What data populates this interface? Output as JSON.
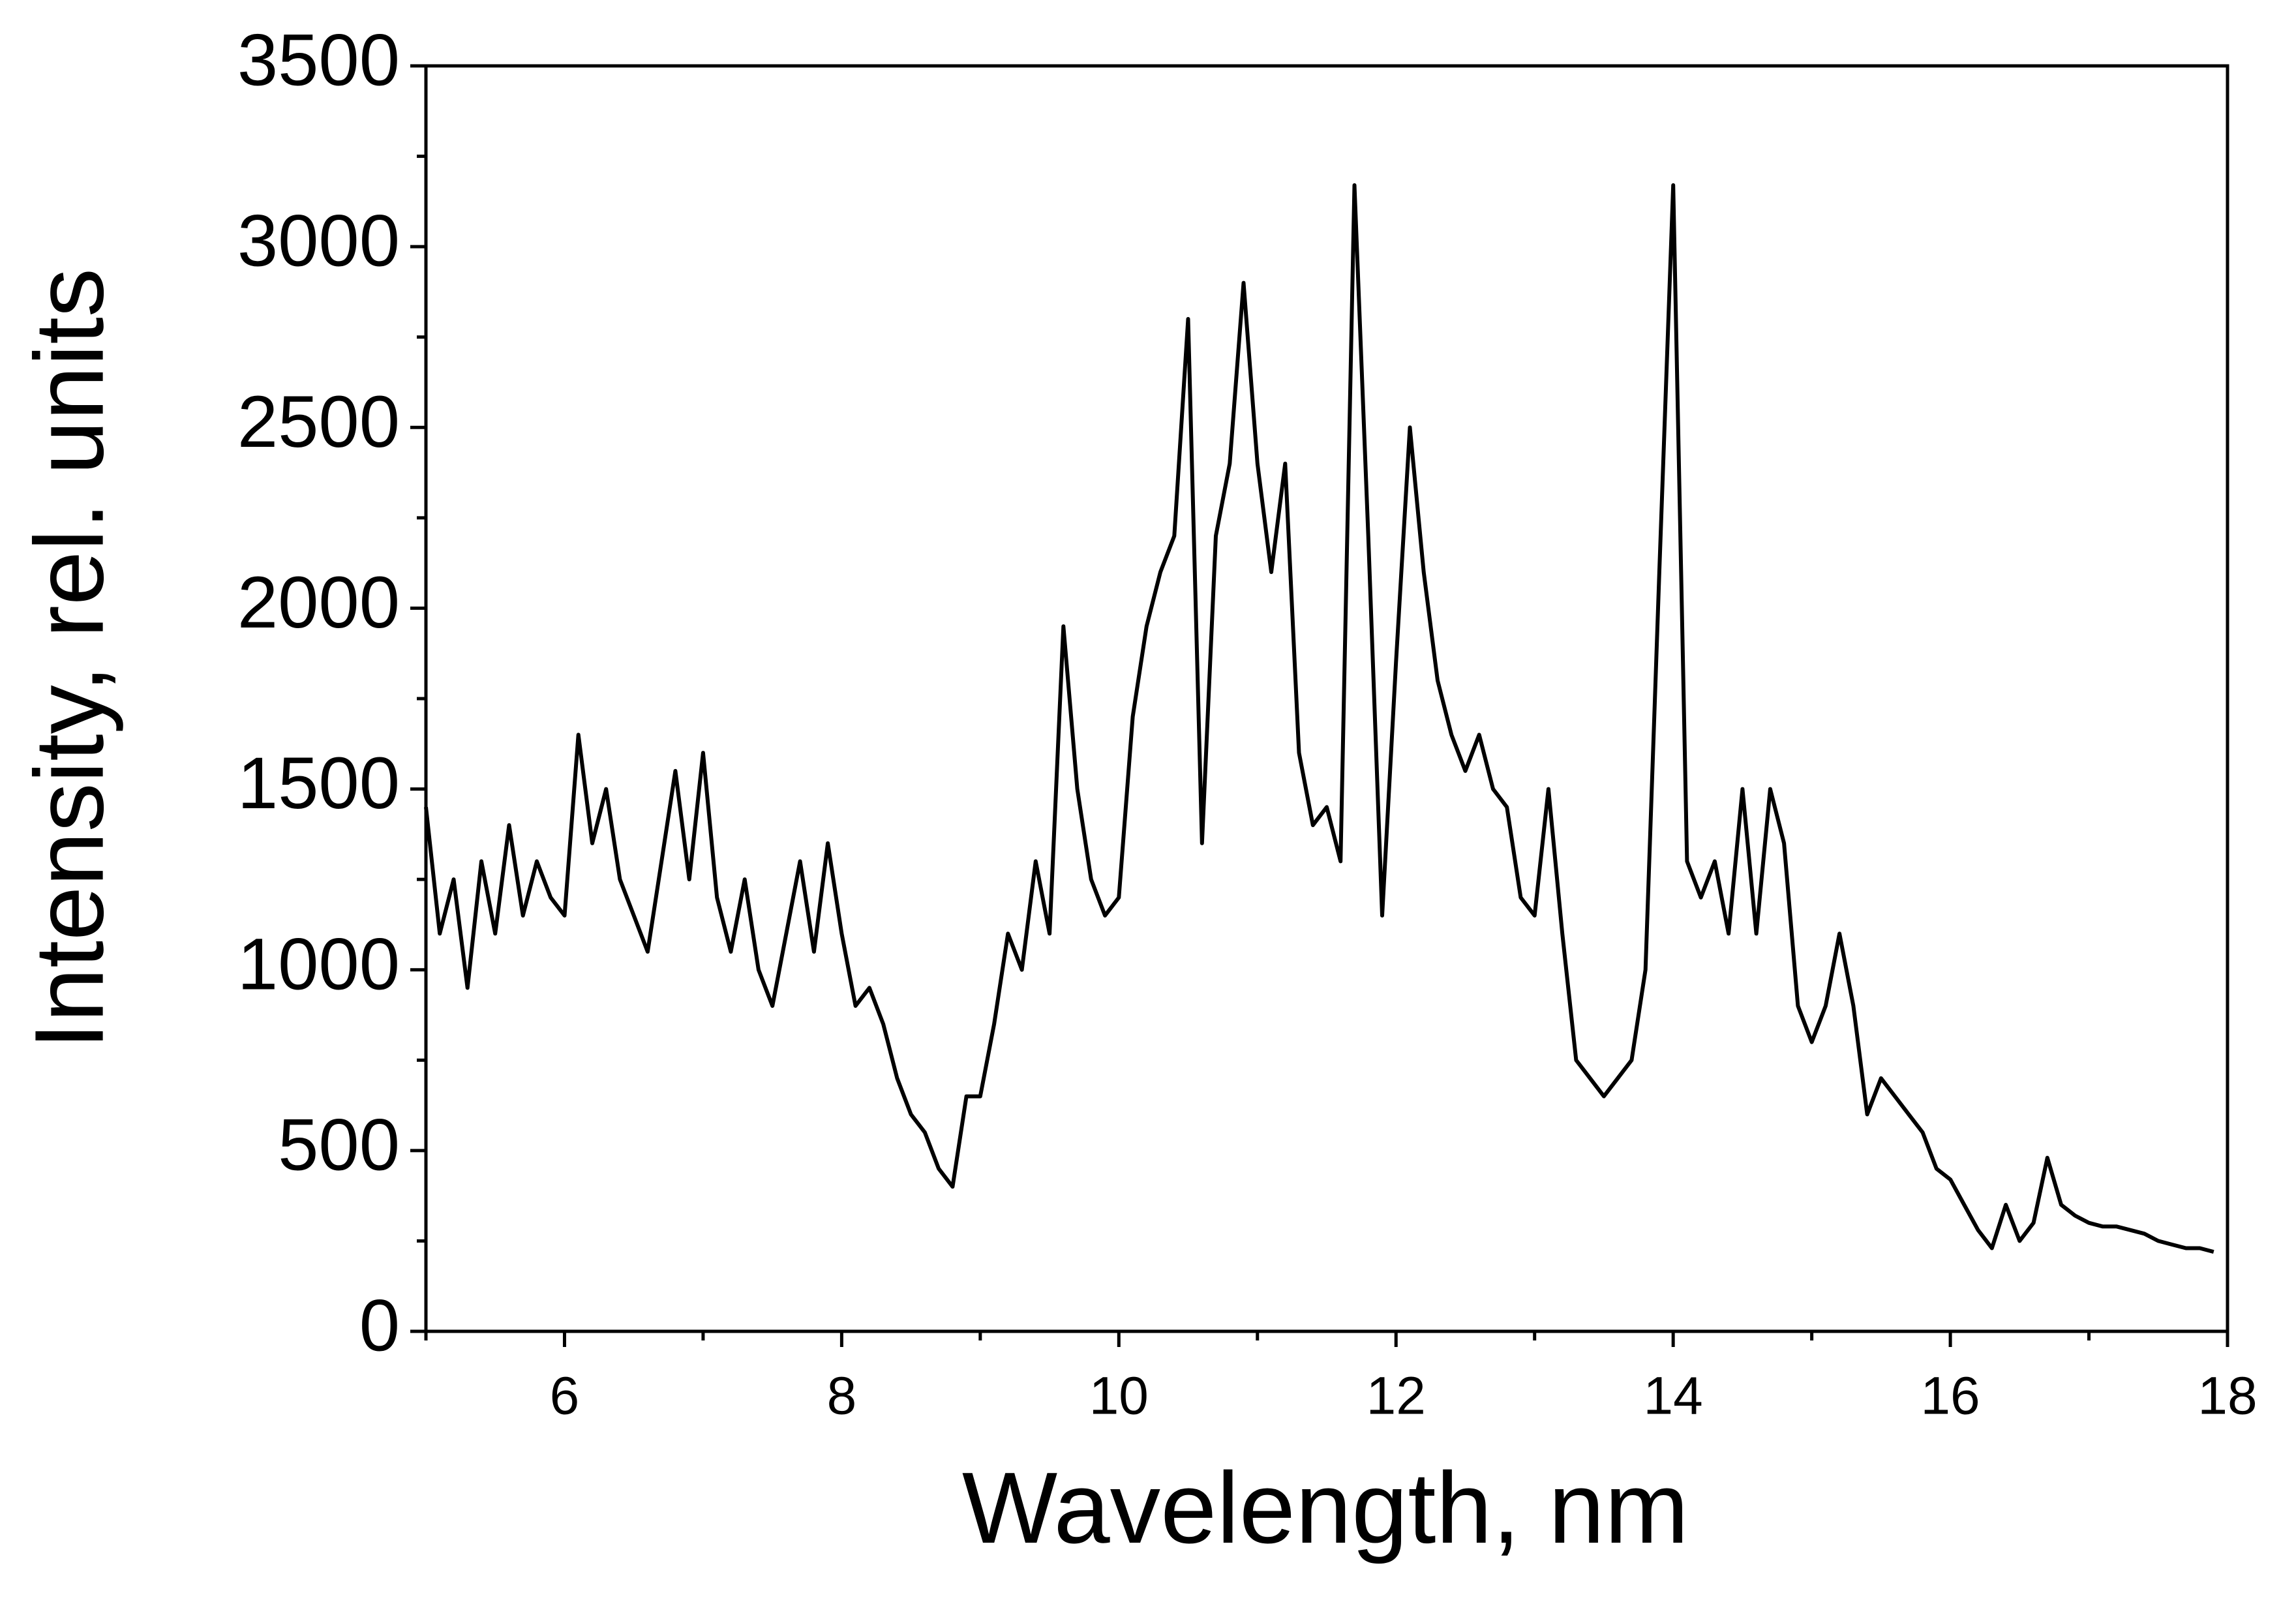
{
  "chart_data": {
    "type": "line",
    "xlabel": "Wavelength, nm",
    "ylabel": "Intensity, rel. units",
    "color": "#000000",
    "x": [
      5.0,
      5.1,
      5.2,
      5.3,
      5.4,
      5.5,
      5.6,
      5.7,
      5.8,
      5.9,
      6.0,
      6.1,
      6.2,
      6.3,
      6.4,
      6.5,
      6.6,
      6.7,
      6.8,
      6.9,
      7.0,
      7.1,
      7.2,
      7.3,
      7.4,
      7.5,
      7.6,
      7.7,
      7.8,
      7.9,
      8.0,
      8.1,
      8.2,
      8.3,
      8.4,
      8.5,
      8.6,
      8.7,
      8.8,
      8.9,
      9.0,
      9.1,
      9.2,
      9.3,
      9.4,
      9.5,
      9.6,
      9.7,
      9.8,
      9.9,
      10.0,
      10.1,
      10.2,
      10.3,
      10.4,
      10.5,
      10.6,
      10.7,
      10.8,
      10.9,
      11.0,
      11.1,
      11.2,
      11.3,
      11.4,
      11.5,
      11.6,
      11.7,
      11.8,
      11.9,
      12.0,
      12.1,
      12.2,
      12.3,
      12.4,
      12.5,
      12.6,
      12.7,
      12.8,
      12.9,
      13.0,
      13.1,
      13.2,
      13.3,
      13.4,
      13.5,
      13.6,
      13.7,
      13.8,
      13.9,
      14.0,
      14.1,
      14.2,
      14.3,
      14.4,
      14.5,
      14.6,
      14.7,
      14.8,
      14.9,
      15.0,
      15.1,
      15.2,
      15.3,
      15.4,
      15.5,
      15.6,
      15.7,
      15.8,
      15.9,
      16.0,
      16.1,
      16.2,
      16.3,
      16.4,
      16.5,
      16.6,
      16.7,
      16.8,
      16.9,
      17.0,
      17.1,
      17.2,
      17.3,
      17.4,
      17.5,
      17.6,
      17.7,
      17.8,
      17.9
    ],
    "values": [
      1450,
      1100,
      1250,
      950,
      1300,
      1100,
      1400,
      1150,
      1300,
      1200,
      1150,
      1650,
      1350,
      1500,
      1250,
      1150,
      1050,
      1300,
      1550,
      1250,
      1600,
      1200,
      1050,
      1250,
      1000,
      900,
      1100,
      1300,
      1050,
      1350,
      1100,
      900,
      950,
      850,
      700,
      600,
      550,
      450,
      400,
      650,
      650,
      850,
      1100,
      1000,
      1300,
      1100,
      1950,
      1500,
      1250,
      1150,
      1200,
      1700,
      1950,
      2100,
      2200,
      2800,
      1350,
      2200,
      2400,
      2900,
      2400,
      2100,
      2400,
      1600,
      1400,
      1450,
      1300,
      3170,
      2200,
      1150,
      1850,
      2500,
      2100,
      1800,
      1650,
      1550,
      1650,
      1500,
      1450,
      1200,
      1150,
      1500,
      1100,
      750,
      700,
      650,
      700,
      750,
      1000,
      2100,
      3170,
      1300,
      1200,
      1300,
      1100,
      1500,
      1100,
      1500,
      1350,
      900,
      800,
      900,
      1100,
      900,
      600,
      700,
      650,
      600,
      550,
      450,
      420,
      350,
      280,
      230,
      350,
      250,
      300,
      480,
      350,
      320,
      300,
      290,
      290,
      280,
      270,
      250,
      240,
      230,
      230,
      220
    ],
    "xlim": [
      5,
      18
    ],
    "xticks": [
      6,
      8,
      10,
      12,
      14,
      16,
      18
    ],
    "xminorticks": [
      5,
      7,
      9,
      11,
      13,
      15,
      17
    ],
    "ylim": [
      0,
      3500
    ],
    "yticks": [
      0,
      500,
      1000,
      1500,
      2000,
      2500,
      3000,
      3500
    ],
    "yminorticks": [
      250,
      750,
      1250,
      1750,
      2250,
      2750,
      3250
    ]
  }
}
